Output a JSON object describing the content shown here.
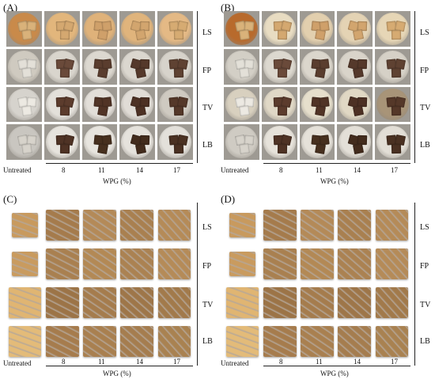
{
  "panels": {
    "a": {
      "label": "(A)"
    },
    "b": {
      "label": "(B)"
    },
    "c": {
      "label": "(C)"
    },
    "d": {
      "label": "(D)"
    }
  },
  "rows": [
    "LS",
    "FP",
    "TV",
    "LB"
  ],
  "columns": [
    "Untreated",
    "8",
    "11",
    "14",
    "17"
  ],
  "x_axis_label": "WPG (%)"
}
